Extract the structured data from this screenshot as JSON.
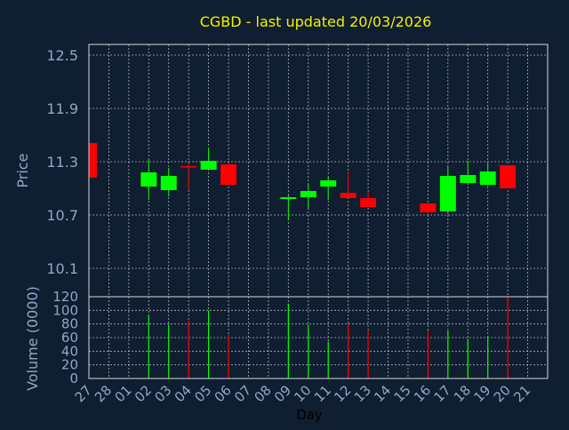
{
  "title": "CGBD - last updated 20/03/2026",
  "colors": {
    "background": "#0f1e30",
    "text": "#8fa7c7",
    "title": "#f2f200",
    "up": "#00ff00",
    "down": "#ff0000",
    "grid": "#d8d8d8"
  },
  "chart_data": [
    {
      "type": "candlestick",
      "ylabel": "Price",
      "ylim": [
        9.78,
        12.62
      ],
      "yticks": [
        "12.5",
        "11.9",
        "11.3",
        "10.7",
        "10.1"
      ],
      "grid": true,
      "x_tick_labels": [
        "27",
        "28",
        "01",
        "02",
        "03",
        "04",
        "05",
        "06",
        "07",
        "08",
        "09",
        "10",
        "11",
        "12",
        "13",
        "14",
        "15",
        "16",
        "17",
        "18",
        "19",
        "20",
        "21"
      ],
      "candles": [
        {
          "x": "27",
          "open": 11.51,
          "close": 11.12,
          "high": 11.51,
          "low": 11.12
        },
        {
          "x": "02",
          "open": 11.02,
          "close": 11.18,
          "high": 11.32,
          "low": 10.87
        },
        {
          "x": "03",
          "open": 10.98,
          "close": 11.14,
          "high": 11.23,
          "low": 10.91
        },
        {
          "x": "04",
          "open": 11.25,
          "close": 11.24,
          "high": 11.27,
          "low": 10.98
        },
        {
          "x": "05",
          "open": 11.21,
          "close": 11.31,
          "high": 11.46,
          "low": 11.21
        },
        {
          "x": "06",
          "open": 11.27,
          "close": 11.04,
          "high": 11.27,
          "low": 11.04
        },
        {
          "x": "09",
          "open": 10.88,
          "close": 10.9,
          "high": 10.92,
          "low": 10.64
        },
        {
          "x": "10",
          "open": 10.9,
          "close": 10.97,
          "high": 11.05,
          "low": 10.78
        },
        {
          "x": "11",
          "open": 11.02,
          "close": 11.09,
          "high": 11.13,
          "low": 10.87
        },
        {
          "x": "12",
          "open": 10.95,
          "close": 10.89,
          "high": 11.19,
          "low": 10.89
        },
        {
          "x": "13",
          "open": 10.89,
          "close": 10.79,
          "high": 10.96,
          "low": 10.79
        },
        {
          "x": "16",
          "open": 10.83,
          "close": 10.73,
          "high": 10.83,
          "low": 10.71
        },
        {
          "x": "17",
          "open": 10.74,
          "close": 11.14,
          "high": 11.24,
          "low": 10.71
        },
        {
          "x": "18",
          "open": 11.06,
          "close": 11.15,
          "high": 11.31,
          "low": 11.06
        },
        {
          "x": "19",
          "open": 11.04,
          "close": 11.19,
          "high": 11.28,
          "low": 11.03
        },
        {
          "x": "20",
          "open": 11.26,
          "close": 11.0,
          "high": 11.26,
          "low": 11.0
        }
      ]
    },
    {
      "type": "bar",
      "ylabel": "Volume (0000)",
      "xlabel": "Day",
      "ylim": [
        0,
        120
      ],
      "yticks": [
        "120",
        "100",
        "80",
        "60",
        "40",
        "20",
        "0"
      ],
      "grid": true,
      "x_tick_labels": [
        "27",
        "28",
        "01",
        "02",
        "03",
        "04",
        "05",
        "06",
        "07",
        "08",
        "09",
        "10",
        "11",
        "12",
        "13",
        "14",
        "15",
        "16",
        "17",
        "18",
        "19",
        "20",
        "21"
      ],
      "bars": [
        {
          "x": "02",
          "value": 93,
          "direction": "up"
        },
        {
          "x": "03",
          "value": 79,
          "direction": "up"
        },
        {
          "x": "04",
          "value": 85,
          "direction": "down"
        },
        {
          "x": "05",
          "value": 100,
          "direction": "up"
        },
        {
          "x": "06",
          "value": 64,
          "direction": "down"
        },
        {
          "x": "09",
          "value": 110,
          "direction": "up"
        },
        {
          "x": "10",
          "value": 79,
          "direction": "up"
        },
        {
          "x": "11",
          "value": 54,
          "direction": "up"
        },
        {
          "x": "12",
          "value": 80,
          "direction": "down"
        },
        {
          "x": "13",
          "value": 70,
          "direction": "down"
        },
        {
          "x": "16",
          "value": 70,
          "direction": "down"
        },
        {
          "x": "17",
          "value": 70,
          "direction": "up"
        },
        {
          "x": "18",
          "value": 58,
          "direction": "up"
        },
        {
          "x": "19",
          "value": 62,
          "direction": "up"
        },
        {
          "x": "20",
          "value": 120,
          "direction": "down"
        }
      ]
    }
  ]
}
